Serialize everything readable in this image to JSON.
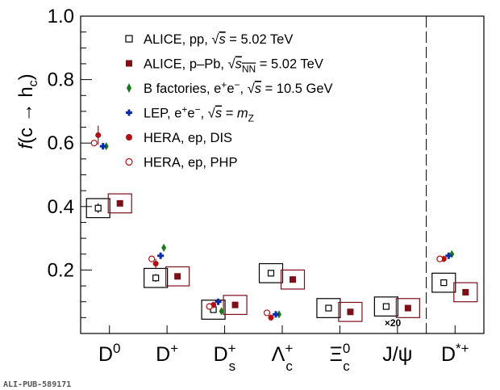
{
  "chart_data": {
    "type": "scatter",
    "title": "",
    "xlabel": "",
    "ylabel": "f(c → h_c)",
    "ylim": [
      0,
      1.0
    ],
    "yticks": [
      "0.2",
      "0.4",
      "0.6",
      "0.8",
      "1.0"
    ],
    "categories": [
      "D0",
      "D+",
      "Ds+",
      "Λc+",
      "Ξc0",
      "J/ψ",
      "D*+"
    ],
    "series": [
      {
        "name": "ALICE, pp, √s = 5.02 TeV",
        "color": "#000000",
        "marker": "open-square",
        "x": [
          "D0",
          "D+",
          "Ds+",
          "Λc+",
          "Ξc0",
          "J/ψ",
          "D*+"
        ],
        "values": [
          0.395,
          0.175,
          0.075,
          0.19,
          0.08,
          0.085,
          0.16
        ],
        "errors": [
          0.015,
          0.012,
          0.005,
          0.01,
          0.007,
          0.004,
          0.01
        ]
      },
      {
        "name": "ALICE, p–Pb, √sNN = 5.02 TeV",
        "color": "#7a1018",
        "marker": "filled-square",
        "x": [
          "D0",
          "D+",
          "Ds+",
          "Λc+",
          "Ξc0",
          "J/ψ",
          "D*+"
        ],
        "values": [
          0.41,
          0.18,
          0.09,
          0.17,
          0.068,
          0.08,
          0.13
        ],
        "errors": [
          0.008,
          0.006,
          0.004,
          0.006,
          0.005,
          0.003,
          0.005
        ]
      },
      {
        "name": "B factories, e⁺e⁻, √s = 10.5 GeV",
        "color": "#1a7a1a",
        "marker": "diamond",
        "x": [
          "D0",
          "D+",
          "Ds+",
          "Λc+",
          "D*+"
        ],
        "values": [
          0.59,
          0.27,
          0.07,
          0.06,
          0.25
        ],
        "errors": [
          0.01,
          0.01,
          0.005,
          0.006,
          0.01
        ]
      },
      {
        "name": "LEP, e⁺e⁻, √s = mZ",
        "color": "#0a2aaa",
        "marker": "cross",
        "x": [
          "D0",
          "D+",
          "Ds+",
          "Λc+",
          "D*+"
        ],
        "values": [
          0.59,
          0.245,
          0.1,
          0.06,
          0.245
        ],
        "errors": [
          0.01,
          0.008,
          0.008,
          0.008,
          0.008
        ]
      },
      {
        "name": "HERA, ep, DIS",
        "color": "#b01010",
        "marker": "filled-circle",
        "x": [
          "D0",
          "D+",
          "Ds+",
          "Λc+",
          "D*+"
        ],
        "values": [
          0.625,
          0.22,
          0.09,
          0.05,
          0.235
        ],
        "errors": [
          0.03,
          0.015,
          0.01,
          0.01,
          0.01
        ]
      },
      {
        "name": "HERA, ep, PHP",
        "color": "#b01010",
        "marker": "open-circle",
        "x": [
          "D0",
          "D+",
          "Ds+",
          "Λc+",
          "D*+"
        ],
        "values": [
          0.6,
          0.235,
          0.085,
          0.065,
          0.235
        ],
        "errors": [
          0.01,
          0.008,
          0.008,
          0.006,
          0.008
        ]
      }
    ],
    "annotations": [
      "×20"
    ],
    "grid": false,
    "legend": "top-left",
    "footer": "ALI-PUB-589171"
  }
}
